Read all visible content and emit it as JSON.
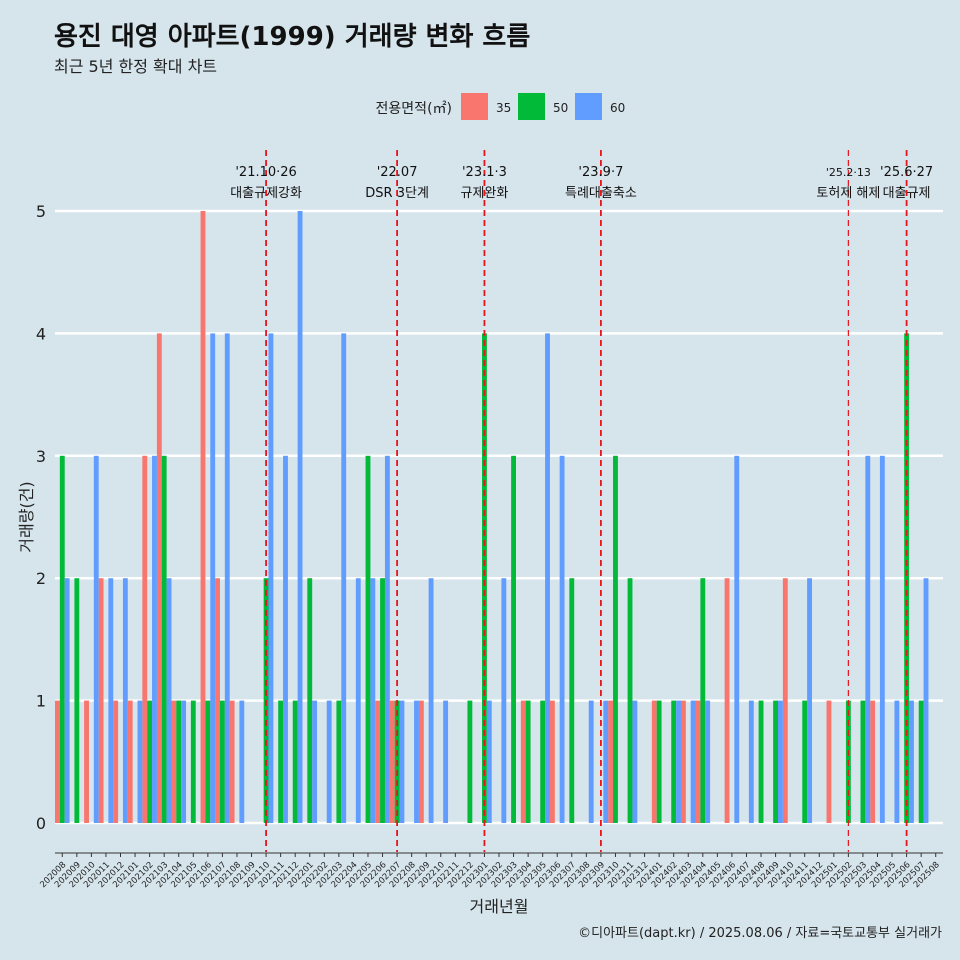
{
  "title": "용진 대영 아파트(1999) 거래량 변화 흐름",
  "subtitle": "최근 5년 한정 확대 차트",
  "credit": "©디아파트(dapt.kr) / 2025.08.06 / 자료=국토교통부 실거래가",
  "chart_data": {
    "type": "bar",
    "xlabel": "거래년월",
    "ylabel": "거래량(건)",
    "ylim": [
      0,
      5
    ],
    "yticks": [
      0,
      1,
      2,
      3,
      4,
      5
    ],
    "legend": {
      "title": "전용면적(㎡)",
      "placement": "top"
    },
    "categories": [
      "202008",
      "202009",
      "202010",
      "202011",
      "202012",
      "202101",
      "202102",
      "202103",
      "202104",
      "202105",
      "202106",
      "202107",
      "202108",
      "202109",
      "202110",
      "202111",
      "202112",
      "202201",
      "202202",
      "202203",
      "202204",
      "202205",
      "202206",
      "202207",
      "202208",
      "202209",
      "202210",
      "202211",
      "202212",
      "202301",
      "202302",
      "202303",
      "202304",
      "202305",
      "202306",
      "202307",
      "202308",
      "202309",
      "202310",
      "202311",
      "202312",
      "202401",
      "202402",
      "202403",
      "202404",
      "202405",
      "202406",
      "202407",
      "202408",
      "202409",
      "202410",
      "202411",
      "202412",
      "202501",
      "202502",
      "202503",
      "202504",
      "202505",
      "202506",
      "202507",
      "202508"
    ],
    "series": [
      {
        "name": "35",
        "color": "#f8766d",
        "values": [
          1,
          0,
          1,
          2,
          1,
          1,
          3,
          4,
          1,
          0,
          5,
          2,
          1,
          0,
          0,
          0,
          0,
          0,
          0,
          0,
          0,
          0,
          1,
          1,
          0,
          1,
          0,
          0,
          0,
          0,
          0,
          0,
          1,
          0,
          1,
          0,
          0,
          0,
          1,
          0,
          0,
          1,
          0,
          1,
          1,
          0,
          2,
          0,
          0,
          0,
          2,
          0,
          0,
          1,
          0,
          0,
          1,
          0,
          0,
          0,
          0
        ]
      },
      {
        "name": "50",
        "color": "#00ba38",
        "values": [
          3,
          2,
          0,
          0,
          0,
          0,
          1,
          3,
          1,
          1,
          1,
          1,
          0,
          0,
          2,
          1,
          1,
          2,
          0,
          1,
          0,
          3,
          2,
          1,
          0,
          0,
          0,
          0,
          1,
          4,
          0,
          3,
          1,
          1,
          0,
          2,
          0,
          0,
          3,
          2,
          0,
          1,
          1,
          0,
          2,
          0,
          0,
          0,
          1,
          1,
          0,
          1,
          0,
          0,
          1,
          1,
          0,
          0,
          4,
          1,
          0
        ]
      },
      {
        "name": "60",
        "color": "#619cff",
        "values": [
          2,
          0,
          3,
          2,
          2,
          1,
          3,
          2,
          1,
          0,
          4,
          4,
          1,
          0,
          4,
          3,
          5,
          1,
          1,
          4,
          2,
          2,
          3,
          1,
          1,
          2,
          1,
          0,
          0,
          1,
          2,
          0,
          0,
          4,
          3,
          0,
          1,
          1,
          0,
          1,
          0,
          0,
          1,
          1,
          1,
          0,
          3,
          1,
          0,
          1,
          0,
          2,
          0,
          0,
          0,
          3,
          3,
          1,
          1,
          2,
          0
        ]
      }
    ],
    "annotations": [
      {
        "at": "202110",
        "date": "'21.10·26",
        "label": "대출규제강화"
      },
      {
        "at": "202207",
        "date": "'22.07",
        "label": "DSR 3단계"
      },
      {
        "at": "202301",
        "date": "'23.1·3",
        "label": "규제완화"
      },
      {
        "at": "202309",
        "date": "'23.9·7",
        "label": "특례대출축소"
      },
      {
        "at": "202502",
        "date": "'25.2·13",
        "label": "토허제 해제"
      },
      {
        "at": "202506",
        "date": "'25.6·27",
        "label": "대출규제"
      }
    ]
  }
}
